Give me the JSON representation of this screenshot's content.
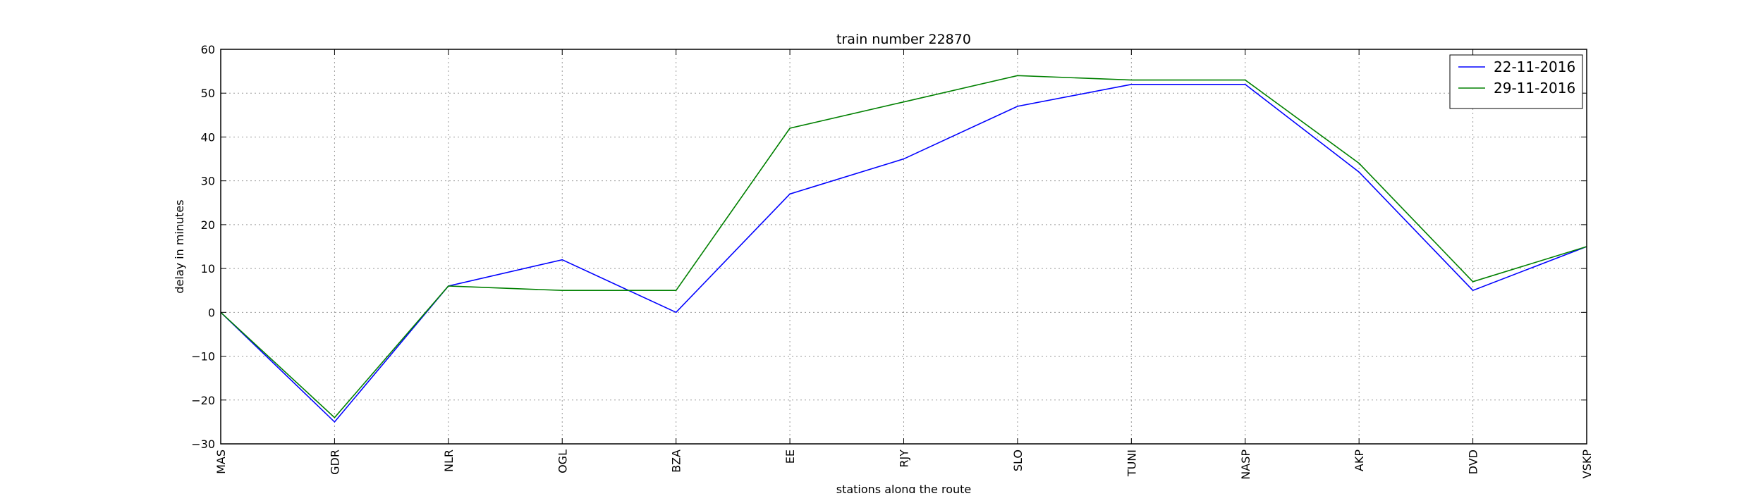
{
  "chart_data": {
    "type": "line",
    "title": "train number 22870",
    "xlabel": "stations along the route",
    "ylabel": "delay in minutes",
    "categories": [
      "MAS",
      "GDR",
      "NLR",
      "OGL",
      "BZA",
      "EE",
      "RJY",
      "SLO",
      "TUNI",
      "NASP",
      "AKP",
      "DVD",
      "VSKP"
    ],
    "ylim": [
      -30,
      60
    ],
    "yticks": [
      -30,
      -20,
      -10,
      0,
      10,
      20,
      30,
      40,
      50,
      60
    ],
    "ytick_labels": [
      "−30",
      "−20",
      "−10",
      "0",
      "10",
      "20",
      "30",
      "40",
      "50",
      "60"
    ],
    "grid": true,
    "legend_position": "top-right",
    "series": [
      {
        "name": "22-11-2016",
        "color": "#0000ff",
        "values": [
          0,
          -25,
          6,
          12,
          0,
          27,
          35,
          47,
          52,
          52,
          32,
          5,
          15
        ]
      },
      {
        "name": "29-11-2016",
        "color": "#008000",
        "values": [
          0,
          -24,
          6,
          5,
          5,
          42,
          48,
          54,
          53,
          53,
          34,
          7,
          15
        ]
      }
    ]
  }
}
